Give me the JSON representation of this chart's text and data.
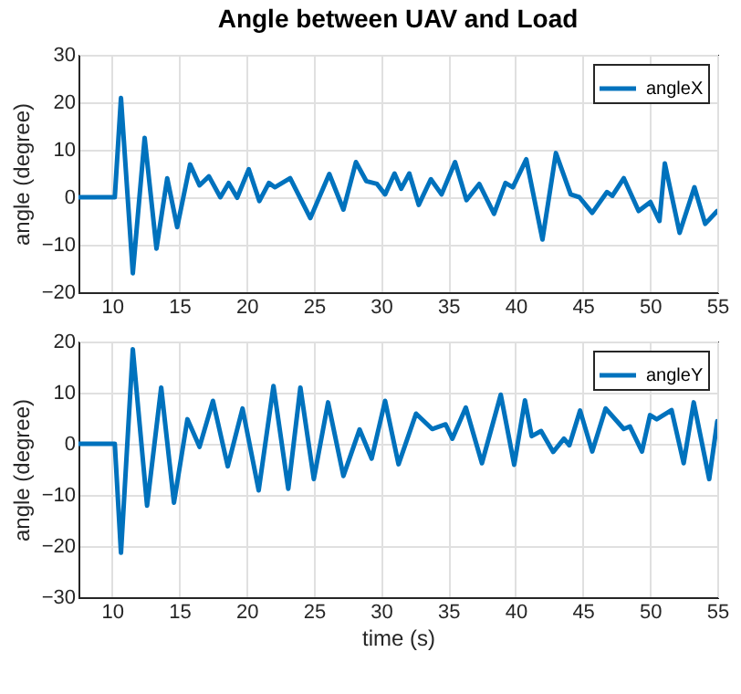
{
  "chart_data": [
    {
      "type": "line",
      "title": "Angle between UAV and Load",
      "ylabel": "angle (degree)",
      "xlim": [
        7.5,
        55
      ],
      "xticks": [
        10,
        15,
        20,
        25,
        30,
        35,
        40,
        45,
        50,
        55
      ],
      "ylim": [
        -20,
        30
      ],
      "yticks": [
        -20,
        -10,
        0,
        10,
        20,
        30
      ],
      "grid": true,
      "legend": "top right",
      "line_style": "solid",
      "marker": "none",
      "series": [
        {
          "name": "angleX",
          "color": "#0072bd",
          "x": [
            7.5,
            10.2,
            10.66,
            11.54,
            12.42,
            13.3,
            14.1,
            14.84,
            15.8,
            16.5,
            17.2,
            18.05,
            18.67,
            19.3,
            20.16,
            20.95,
            21.66,
            22.1,
            23.24,
            24.74,
            26.15,
            27.2,
            28.13,
            28.9,
            29.7,
            30.3,
            31,
            31.5,
            32.1,
            32.8,
            33.7,
            34.5,
            35.5,
            36.35,
            37.3,
            38.4,
            39.25,
            39.8,
            40.8,
            42,
            43,
            44.1,
            44.75,
            45.7,
            46.8,
            47.2,
            48.05,
            49.15,
            50.03,
            50.7,
            51.1,
            52.2,
            53.3,
            54.1,
            55
          ],
          "values": [
            0,
            0,
            20.9,
            -16,
            12.5,
            -10.8,
            4,
            -6.3,
            6.9,
            2.5,
            4.4,
            0,
            3,
            -0.1,
            5.9,
            -0.8,
            3,
            2.1,
            4,
            -4.4,
            4.9,
            -2.6,
            7.4,
            3.4,
            2.8,
            0.6,
            5,
            1.8,
            5,
            -1.6,
            3.8,
            0.6,
            7.4,
            -0.6,
            2.8,
            -3.5,
            3,
            2.1,
            8,
            -8.9,
            9.3,
            0.6,
            0,
            -3.3,
            1.1,
            0.3,
            4,
            -2.9,
            -1,
            -5,
            7.1,
            -7.5,
            2.1,
            -5.6,
            -2.9
          ]
        }
      ]
    },
    {
      "type": "line",
      "xlabel": "time (s)",
      "ylabel": "angle (degree)",
      "xlim": [
        7.5,
        55
      ],
      "xticks": [
        10,
        15,
        20,
        25,
        30,
        35,
        40,
        45,
        50,
        55
      ],
      "ylim": [
        -30,
        20
      ],
      "yticks": [
        -30,
        -20,
        -10,
        0,
        10,
        20
      ],
      "grid": true,
      "legend": "top right",
      "line_style": "solid",
      "marker": "none",
      "series": [
        {
          "name": "angleY",
          "color": "#0072bd",
          "x": [
            7.5,
            10.2,
            10.66,
            11.54,
            12.6,
            13.65,
            14.6,
            15.6,
            16.5,
            17.5,
            18.6,
            19.7,
            20.9,
            22,
            23.1,
            24,
            25,
            26.06,
            27.2,
            28.4,
            29.3,
            30.3,
            31.3,
            32.6,
            33.8,
            34.8,
            35.3,
            36.3,
            37.5,
            38.9,
            39.9,
            40.7,
            41.2,
            41.9,
            42.8,
            43.6,
            44,
            44.8,
            45.7,
            46.7,
            48.05,
            48.5,
            49.4,
            50,
            50.5,
            51.6,
            52.5,
            53.25,
            54.4,
            55
          ],
          "values": [
            0,
            0,
            -21.3,
            18.5,
            -12.1,
            11,
            -11.5,
            4.8,
            -0.6,
            8.4,
            -4.4,
            6.9,
            -9.1,
            11.3,
            -8.8,
            11,
            -6.9,
            8.1,
            -6.3,
            2.8,
            -2.9,
            8.4,
            -4,
            5.9,
            2.9,
            3.8,
            1,
            7.1,
            -3.8,
            9.6,
            -4.1,
            8.5,
            1.5,
            2.5,
            -1.6,
            1,
            -0.3,
            6.5,
            -1.5,
            6.9,
            2.9,
            3.4,
            -1.5,
            5.6,
            4.8,
            6.6,
            -3.8,
            8.1,
            -6.9,
            4.4
          ]
        }
      ]
    }
  ]
}
